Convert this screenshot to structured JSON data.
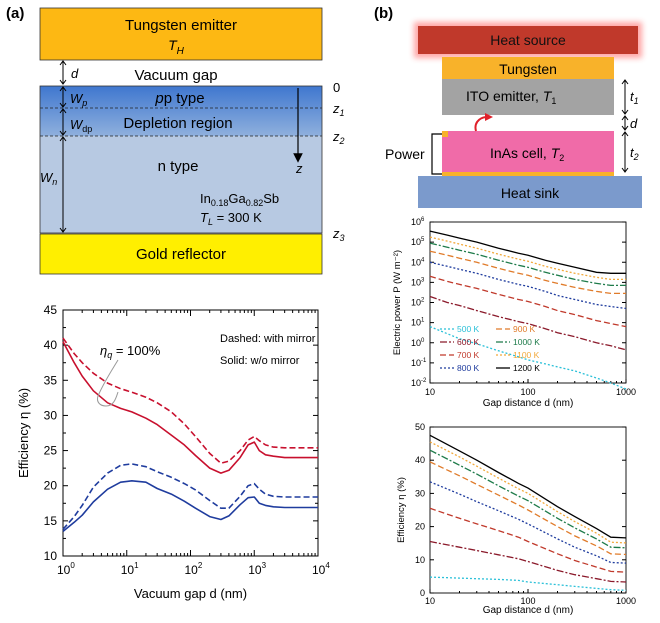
{
  "figure_labels": {
    "a": "(a)",
    "b": "(b)"
  },
  "colors": {
    "emitter": "#FDB813",
    "gold": "#FFEF00",
    "ptype": "#5B8DD6",
    "ntype": "#B7C9E2",
    "heat_source": "#C0392B",
    "tungsten": "#F8B22A",
    "ito": "#A3A3A3",
    "inas": "#F06BA8",
    "heat_sink": "#7B9ACC",
    "red_curve": "#C8102E",
    "blue_curve": "#1F3C9E"
  },
  "panel_a_schematic": {
    "emitter_line1": "Tungsten emitter",
    "emitter_T": "T",
    "emitter_T_sub": "H",
    "d_label": "d",
    "vacuum_gap": "Vacuum gap",
    "zero": "0",
    "Wp": "W",
    "Wp_sub": "p",
    "ptype": "p type",
    "z1": "z",
    "z1_sub": "1",
    "Wdp": "W",
    "Wdp_sub": "dp",
    "depletion": "Depletion region",
    "z2": "z",
    "z2_sub": "2",
    "z_axis": "z",
    "ntype": "n type",
    "Wn": "W",
    "Wn_sub": "n",
    "material_a": "In",
    "material_sub1": "0.18",
    "material_b": "Ga",
    "material_sub2": "0.82",
    "material_c": "Sb",
    "TL": "T",
    "TL_sub": "L",
    "TL_value": " = 300 K",
    "z3": "z",
    "z3_sub": "3",
    "gold": "Gold reflector"
  },
  "panel_b_schematic": {
    "heat_source": "Heat source",
    "tungsten": "Tungsten",
    "ito": "ITO emitter, ",
    "ito_T": "T",
    "ito_T_sub": "1",
    "t1": "t",
    "t1_sub": "1",
    "d": "d",
    "power": "Power",
    "inas": "InAs cell, ",
    "inas_T": "T",
    "inas_T_sub": "2",
    "t2": "t",
    "t2_sub": "2",
    "heat_sink": "Heat sink"
  },
  "chart_data": [
    {
      "id": "a-efficiency",
      "type": "line",
      "xscale": "log",
      "xlabel": "Vacuum gap d (nm)",
      "ylabel": "Efficiency η (%)",
      "xlim": [
        1,
        10000
      ],
      "ylim": [
        10,
        45
      ],
      "yticks": [
        10,
        15,
        20,
        25,
        30,
        35,
        40,
        45
      ],
      "xticks": [
        "10^0",
        "10^1",
        "10^2",
        "10^3",
        "10^4"
      ],
      "annotations": {
        "eta_q": "η",
        "eta_q_sub": "q",
        "eta_q_value": " = 100%",
        "legend_dashed": "Dashed: with mirror",
        "legend_solid": "Solid: w/o mirror"
      },
      "series": [
        {
          "name": "ηq=100% with mirror",
          "style": "dashed",
          "color": "red",
          "x": [
            1,
            1.5,
            2,
            3,
            5,
            8,
            12,
            20,
            30,
            50,
            80,
            120,
            200,
            300,
            400,
            600,
            800,
            1000,
            1200,
            1500,
            2000,
            3000,
            5000,
            10000
          ],
          "y": [
            41,
            38.8,
            37.5,
            36,
            34.6,
            33.8,
            33.3,
            32.6,
            31.8,
            30.5,
            28.8,
            27,
            24.6,
            23.2,
            23.5,
            25,
            26.5,
            27,
            26.4,
            25.8,
            25.5,
            25.4,
            25.4,
            25.4
          ]
        },
        {
          "name": "ηq=100% without mirror",
          "style": "solid",
          "color": "red",
          "x": [
            1,
            1.5,
            2,
            3,
            5,
            8,
            12,
            20,
            30,
            50,
            80,
            120,
            200,
            300,
            400,
            600,
            800,
            1000,
            1200,
            1500,
            2000,
            3000,
            5000,
            10000
          ],
          "y": [
            40.5,
            37.5,
            35.6,
            33.5,
            31.8,
            31,
            30.5,
            29.6,
            28.7,
            27.2,
            25.8,
            24.3,
            22.5,
            21.8,
            22.2,
            24,
            25.8,
            26.2,
            25,
            24.4,
            24.2,
            24,
            24,
            24
          ]
        },
        {
          "name": "lower with mirror",
          "style": "dashed",
          "color": "blue",
          "x": [
            1,
            1.5,
            2,
            3,
            5,
            8,
            12,
            20,
            30,
            50,
            80,
            120,
            200,
            300,
            400,
            600,
            800,
            1000,
            1200,
            1500,
            2000,
            3000,
            5000,
            10000
          ],
          "y": [
            13.8,
            15.6,
            17.2,
            19.8,
            21.8,
            22.9,
            23.1,
            22.7,
            22,
            21.2,
            20.3,
            19.4,
            17.9,
            16.8,
            16.8,
            18.5,
            20,
            20.3,
            19.5,
            18.8,
            18.5,
            18.4,
            18.4,
            18.4
          ]
        },
        {
          "name": "lower without mirror",
          "style": "solid",
          "color": "blue",
          "x": [
            1,
            1.5,
            2,
            3,
            5,
            8,
            12,
            20,
            30,
            50,
            80,
            120,
            200,
            300,
            400,
            600,
            800,
            1000,
            1200,
            1500,
            2000,
            3000,
            5000,
            10000
          ],
          "y": [
            13.5,
            14.8,
            15.8,
            17.7,
            19.5,
            20.5,
            20.7,
            20.5,
            19.6,
            18.8,
            17.8,
            16.8,
            15.6,
            15.2,
            15.7,
            17.3,
            18.3,
            18.4,
            17.5,
            17.2,
            17,
            16.9,
            16.9,
            16.9
          ]
        }
      ]
    },
    {
      "id": "b-power",
      "type": "line",
      "xscale": "log",
      "yscale": "log",
      "xlabel": "Gap distance d (nm)",
      "ylabel": "Electric power P (W m⁻²)",
      "xlim": [
        10,
        1000
      ],
      "ylim_exp": [
        -2,
        6
      ],
      "xticks": [
        "10",
        "100",
        "1000"
      ],
      "legend": [
        "500 K",
        "900 K",
        "600 K",
        "1000 K",
        "700 K",
        "1100 K",
        "800 K",
        "1200 K"
      ],
      "series": [
        {
          "name": "500 K",
          "color": "#2BC0D8",
          "style": "dotted",
          "x": [
            10,
            15,
            20,
            30,
            50,
            80,
            100,
            150,
            200,
            300,
            500,
            700,
            1000
          ],
          "log_y": [
            0.8,
            0.45,
            0.2,
            -0.05,
            -0.4,
            -0.7,
            -0.85,
            -1.05,
            -1.2,
            -1.4,
            -1.75,
            -2.0,
            -2.3
          ]
        },
        {
          "name": "600 K",
          "color": "#8B1A2B",
          "style": "dashdot",
          "x": [
            10,
            15,
            20,
            30,
            50,
            80,
            100,
            150,
            200,
            300,
            500,
            700,
            1000
          ],
          "log_y": [
            2.3,
            2.0,
            1.85,
            1.6,
            1.3,
            1.05,
            0.95,
            0.7,
            0.5,
            0.3,
            0.0,
            -0.15,
            -0.35
          ]
        },
        {
          "name": "700 K",
          "color": "#C0392B",
          "style": "dashed",
          "x": [
            10,
            15,
            20,
            30,
            50,
            80,
            100,
            150,
            200,
            300,
            500,
            700,
            1000
          ],
          "log_y": [
            3.3,
            3.05,
            2.9,
            2.7,
            2.4,
            2.15,
            2.05,
            1.8,
            1.6,
            1.4,
            1.1,
            0.95,
            0.8
          ]
        },
        {
          "name": "800 K",
          "color": "#1F3C9E",
          "style": "dotted",
          "x": [
            10,
            15,
            20,
            30,
            50,
            80,
            100,
            150,
            200,
            300,
            500,
            700,
            1000
          ],
          "log_y": [
            4.0,
            3.8,
            3.65,
            3.45,
            3.15,
            2.9,
            2.8,
            2.55,
            2.35,
            2.15,
            1.9,
            1.8,
            1.7
          ]
        },
        {
          "name": "900 K",
          "color": "#E07B2A",
          "style": "dashed",
          "x": [
            10,
            15,
            20,
            30,
            50,
            80,
            100,
            150,
            200,
            300,
            500,
            700,
            1000
          ],
          "log_y": [
            4.55,
            4.35,
            4.2,
            4.0,
            3.7,
            3.45,
            3.35,
            3.1,
            2.95,
            2.75,
            2.55,
            2.45,
            2.45
          ]
        },
        {
          "name": "1000 K",
          "color": "#1E7B4A",
          "style": "dashdot",
          "x": [
            10,
            15,
            20,
            30,
            50,
            80,
            100,
            150,
            200,
            300,
            500,
            700,
            1000
          ],
          "log_y": [
            4.95,
            4.75,
            4.6,
            4.4,
            4.1,
            3.85,
            3.75,
            3.5,
            3.35,
            3.15,
            2.95,
            2.85,
            2.85
          ]
        },
        {
          "name": "1100 K",
          "color": "#F2A93B",
          "style": "dotted",
          "x": [
            10,
            15,
            20,
            30,
            50,
            80,
            100,
            150,
            200,
            300,
            500,
            700,
            1000
          ],
          "log_y": [
            5.25,
            5.05,
            4.9,
            4.7,
            4.4,
            4.15,
            4.05,
            3.8,
            3.65,
            3.45,
            3.25,
            3.15,
            3.15
          ]
        },
        {
          "name": "1200 K",
          "color": "#000000",
          "style": "solid",
          "x": [
            10,
            15,
            20,
            30,
            50,
            80,
            100,
            150,
            200,
            300,
            500,
            700,
            1000
          ],
          "log_y": [
            5.55,
            5.35,
            5.2,
            5.0,
            4.7,
            4.45,
            4.35,
            4.1,
            3.95,
            3.75,
            3.5,
            3.45,
            3.45
          ]
        }
      ]
    },
    {
      "id": "b-efficiency",
      "type": "line",
      "xscale": "log",
      "xlabel": "Gap distance d (nm)",
      "ylabel": "Efficiency η (%)",
      "xlim": [
        10,
        1000
      ],
      "ylim": [
        0,
        50
      ],
      "yticks": [
        0,
        10,
        20,
        30,
        40,
        50
      ],
      "xticks": [
        "10",
        "100",
        "1000"
      ],
      "series": [
        {
          "name": "500 K",
          "color": "#2BC0D8",
          "style": "dotted",
          "x": [
            10,
            20,
            30,
            50,
            80,
            100,
            200,
            300,
            500,
            700,
            1000
          ],
          "y": [
            4.8,
            4.5,
            4.3,
            4.1,
            3.8,
            3.3,
            2.5,
            2.0,
            1.4,
            1.0,
            0.8
          ]
        },
        {
          "name": "600 K",
          "color": "#8B1A2B",
          "style": "dashdot",
          "x": [
            10,
            20,
            30,
            50,
            80,
            100,
            200,
            300,
            500,
            700,
            1000
          ],
          "y": [
            15.5,
            13.8,
            12.8,
            11.5,
            10.3,
            9.5,
            6.8,
            5.5,
            4.3,
            3.5,
            3.3
          ]
        },
        {
          "name": "700 K",
          "color": "#C0392B",
          "style": "dashed",
          "x": [
            10,
            20,
            30,
            50,
            80,
            100,
            200,
            300,
            500,
            700,
            1000
          ],
          "y": [
            25.5,
            22.5,
            20.8,
            18.8,
            16.8,
            15.5,
            11.8,
            9.8,
            7.8,
            6.5,
            6.3
          ]
        },
        {
          "name": "800 K",
          "color": "#1F3C9E",
          "style": "dotted",
          "x": [
            10,
            20,
            30,
            50,
            80,
            100,
            200,
            300,
            500,
            700,
            1000
          ],
          "y": [
            33.5,
            29.8,
            27.5,
            24.8,
            22.2,
            20.8,
            16.3,
            13.8,
            11.2,
            9.2,
            9.0
          ]
        },
        {
          "name": "900 K",
          "color": "#E07B2A",
          "style": "dashed",
          "x": [
            10,
            20,
            30,
            50,
            80,
            100,
            200,
            300,
            500,
            700,
            1000
          ],
          "y": [
            39.5,
            35.3,
            32.7,
            29.5,
            26.5,
            25.0,
            20.0,
            17.2,
            14.2,
            11.8,
            11.6
          ]
        },
        {
          "name": "1000 K",
          "color": "#1E7B4A",
          "style": "dashdot",
          "x": [
            10,
            20,
            30,
            50,
            80,
            100,
            200,
            300,
            500,
            700,
            1000
          ],
          "y": [
            43.0,
            38.5,
            35.8,
            32.3,
            29.2,
            27.8,
            22.5,
            19.6,
            16.3,
            13.8,
            13.6
          ]
        },
        {
          "name": "1100 K",
          "color": "#F2A93B",
          "style": "dotted",
          "x": [
            10,
            20,
            30,
            50,
            80,
            100,
            200,
            300,
            500,
            700,
            1000
          ],
          "y": [
            45.5,
            41.0,
            38.2,
            34.6,
            31.4,
            30.0,
            24.5,
            21.5,
            18.0,
            15.3,
            15.1
          ]
        },
        {
          "name": "1200 K",
          "color": "#000000",
          "style": "solid",
          "x": [
            10,
            20,
            30,
            50,
            80,
            100,
            200,
            300,
            500,
            700,
            1000
          ],
          "y": [
            47.5,
            42.8,
            40.0,
            36.3,
            33.0,
            31.6,
            26.0,
            23.0,
            19.4,
            16.8,
            16.6
          ]
        }
      ]
    }
  ]
}
